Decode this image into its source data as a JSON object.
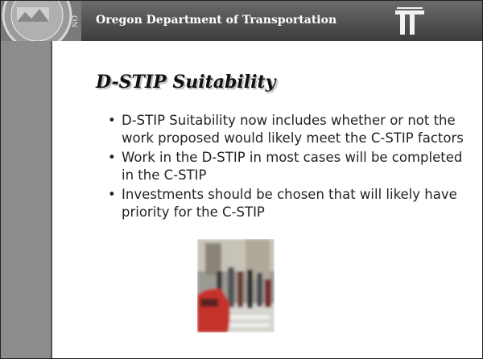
{
  "header": {
    "title": "Oregon Department of Transportation"
  },
  "slide": {
    "title": "D-STIP Suitability",
    "bullets": [
      "D-STIP Suitability now includes whether or not the work proposed would likely meet the C-STIP factors",
      "Work in the D-STIP in most cases will be completed in the C-STIP",
      "Investments should be chosen that will likely have priority for the C-STIP"
    ]
  }
}
